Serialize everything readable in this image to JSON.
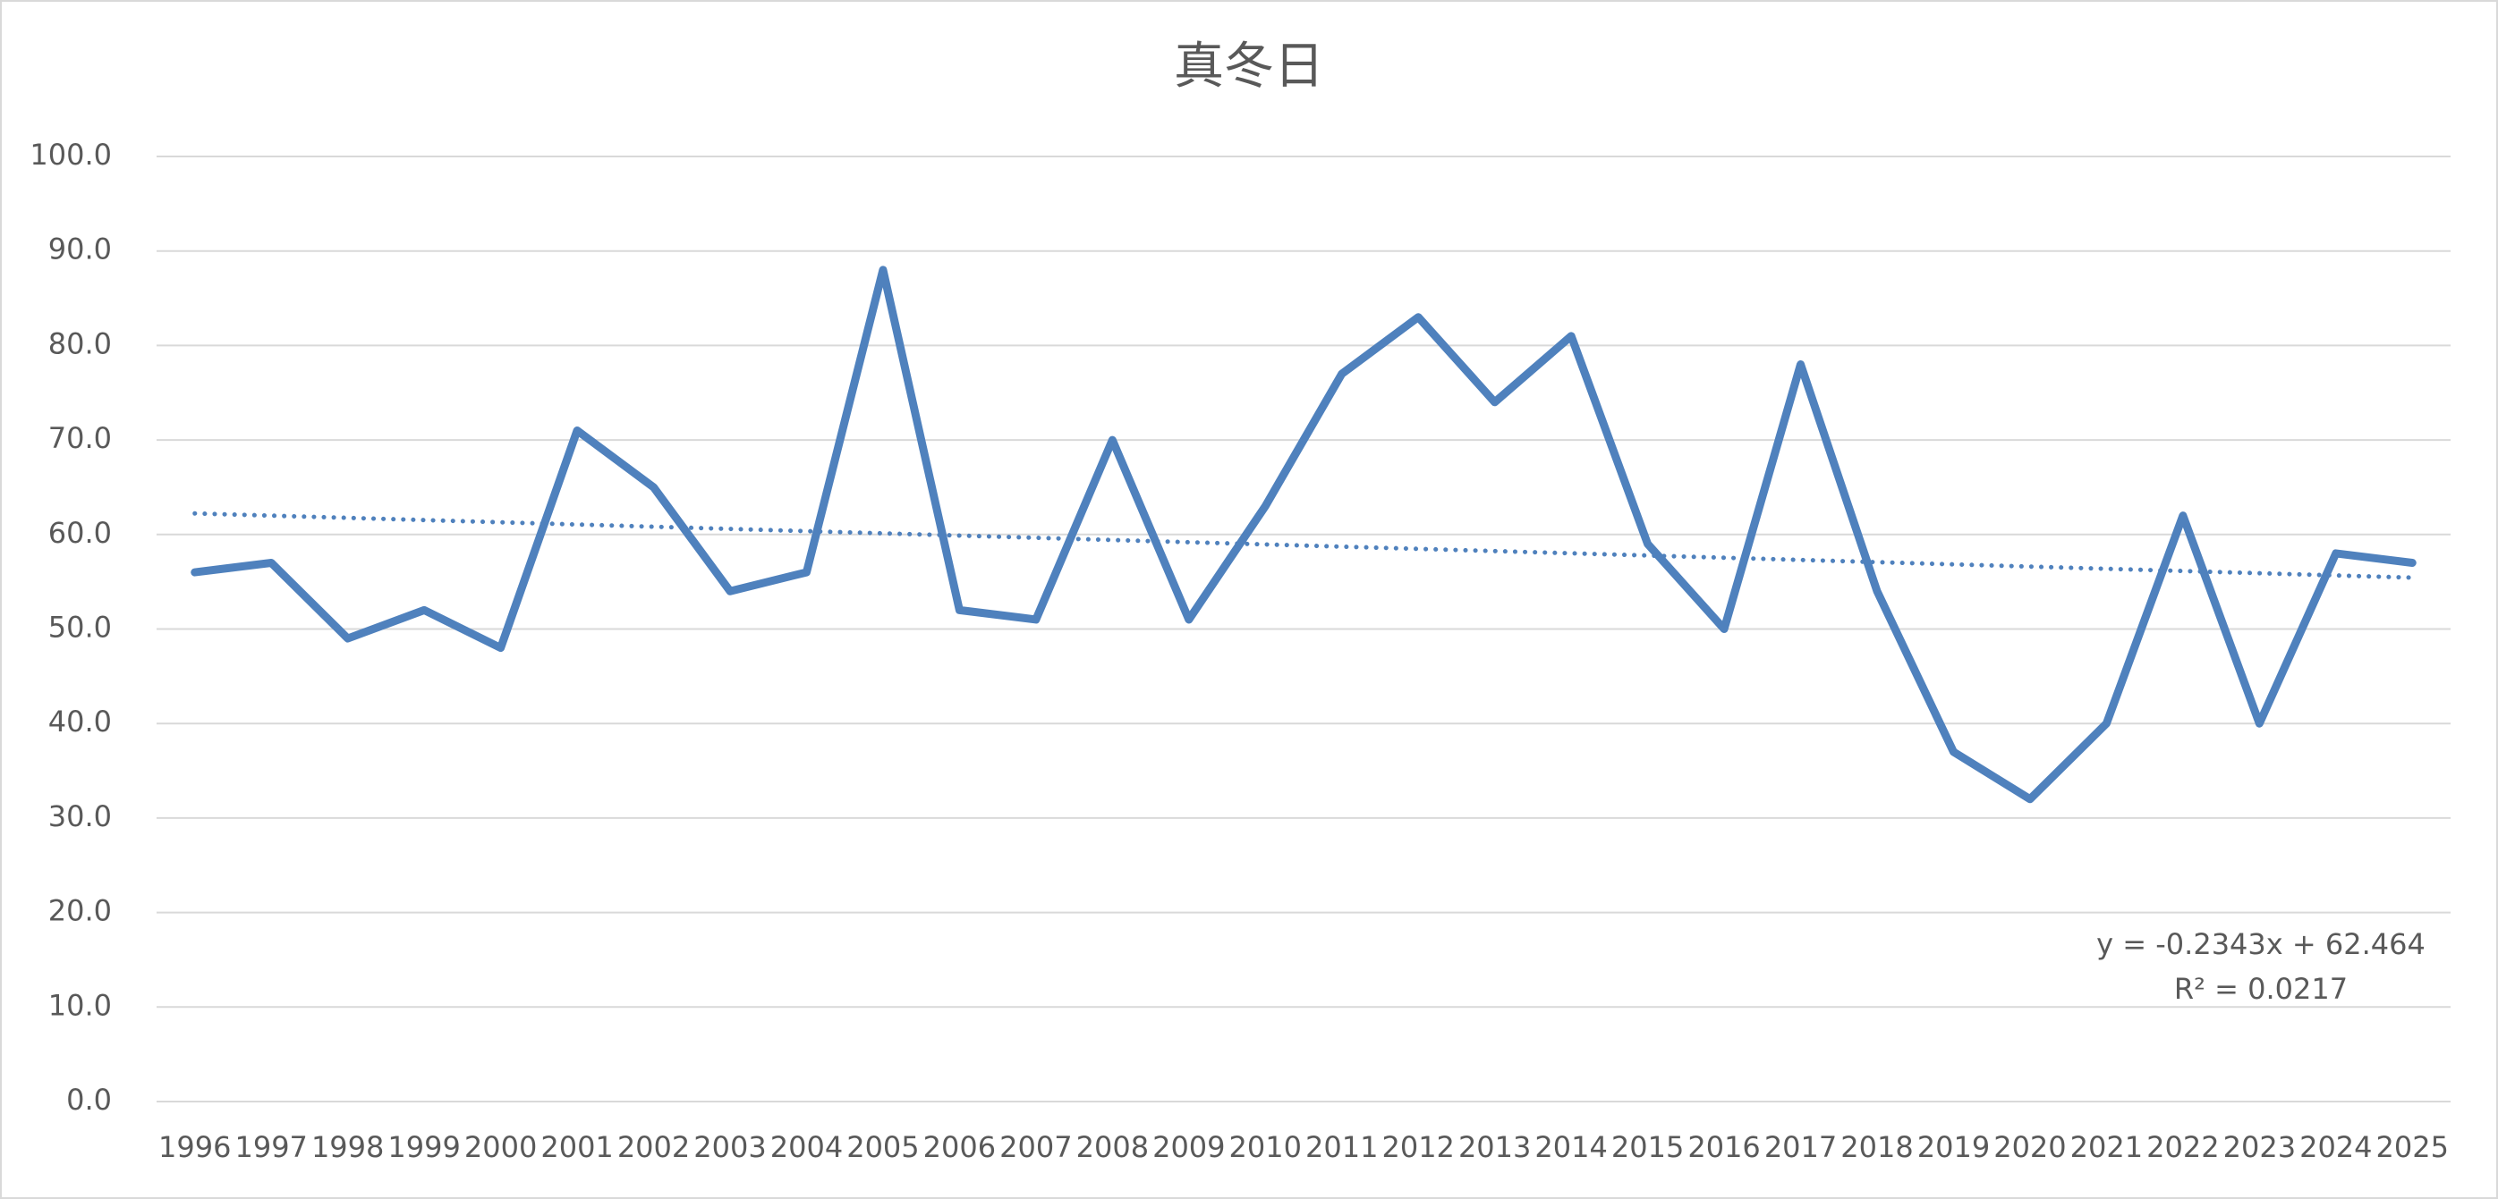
{
  "chart_data": {
    "type": "line",
    "title": "真冬日",
    "categories": [
      "1996",
      "1997",
      "1998",
      "1999",
      "2000",
      "2001",
      "2002",
      "2003",
      "2004",
      "2005",
      "2006",
      "2007",
      "2008",
      "2009",
      "2010",
      "2011",
      "2012",
      "2013",
      "2014",
      "2015",
      "2016",
      "2017",
      "2018",
      "2019",
      "2020",
      "2021",
      "2022",
      "2023",
      "2024",
      "2025"
    ],
    "series": [
      {
        "color": "#4f81bd",
        "values": [
          56,
          57,
          49,
          52,
          48,
          71,
          65,
          54,
          56,
          88,
          52,
          51,
          70,
          51,
          63,
          77,
          83,
          74,
          81,
          59,
          50,
          78,
          54,
          37,
          32,
          40,
          62,
          40,
          58,
          57
        ]
      }
    ],
    "ylim": [
      0,
      100
    ],
    "yticks": [
      {
        "value": 0,
        "label": "0.0"
      },
      {
        "value": 10,
        "label": "10.0"
      },
      {
        "value": 20,
        "label": "20.0"
      },
      {
        "value": 30,
        "label": "30.0"
      },
      {
        "value": 40,
        "label": "40.0"
      },
      {
        "value": 50,
        "label": "50.0"
      },
      {
        "value": 60,
        "label": "60.0"
      },
      {
        "value": 70,
        "label": "70.0"
      },
      {
        "value": 80,
        "label": "80.0"
      },
      {
        "value": 90,
        "label": "90.0"
      },
      {
        "value": 100,
        "label": "100.0"
      }
    ],
    "grid": true,
    "trendline": {
      "slope": -0.2343,
      "intercept": 62.464,
      "r2": 0.0217,
      "equation_label": "y = -0.2343x + 62.464",
      "r2_label": "R² = 0.0217"
    }
  }
}
